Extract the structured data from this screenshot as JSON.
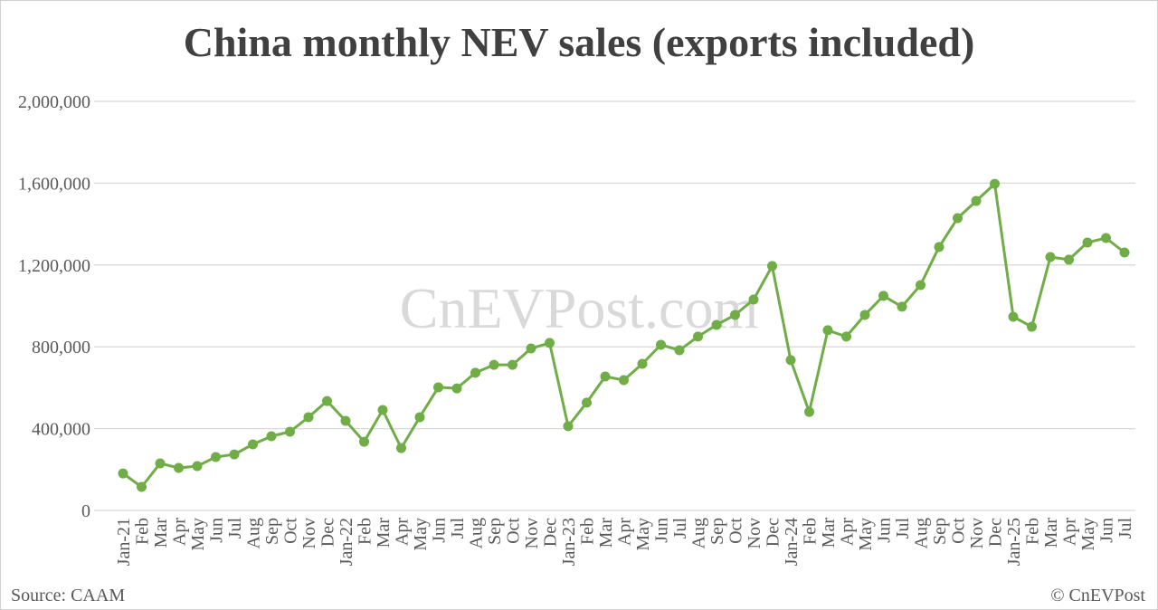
{
  "chart_data": {
    "type": "line",
    "title": "China monthly NEV sales (exports included)",
    "xlabel": "",
    "ylabel": "",
    "ylim": [
      0,
      2000000
    ],
    "yticks": [
      "0",
      "400,000",
      "800,000",
      "1,200,000",
      "1,600,000",
      "2,000,000"
    ],
    "ytick_values": [
      0,
      400000,
      800000,
      1200000,
      1600000,
      2000000
    ],
    "grid": true,
    "legend": "none",
    "line_color": "#70ad47",
    "categories": [
      "Jan-21",
      "Feb",
      "Mar",
      "Apr",
      "May",
      "Jun",
      "Jul",
      "Aug",
      "Sep",
      "Oct",
      "Nov",
      "Dec",
      "Jan-22",
      "Feb",
      "Mar",
      "Apr",
      "May",
      "Jun",
      "Jul",
      "Aug",
      "Sep",
      "Oct",
      "Nov",
      "Dec",
      "Jan-23",
      "Feb",
      "Mar",
      "Apr",
      "May",
      "Jun",
      "Jul",
      "Aug",
      "Sep",
      "Oct",
      "Nov",
      "Dec",
      "Jan-24",
      "Feb",
      "Mar",
      "Apr",
      "May",
      "Jun",
      "Jul",
      "Aug",
      "Sep",
      "Oct",
      "Nov",
      "Dec",
      "Jan-25",
      "Feb",
      "Mar",
      "Apr",
      "May",
      "Jun",
      "Jul"
    ],
    "values": [
      181000,
      115000,
      230000,
      208000,
      217000,
      261000,
      274000,
      323000,
      363000,
      385000,
      456000,
      535000,
      438000,
      336000,
      491000,
      305000,
      456000,
      602000,
      597000,
      673000,
      712000,
      712000,
      792000,
      819000,
      412000,
      527000,
      655000,
      637000,
      717000,
      810000,
      783000,
      850000,
      907000,
      956000,
      1031000,
      1195000,
      735000,
      482000,
      881000,
      850000,
      956000,
      1049000,
      996000,
      1102000,
      1288000,
      1429000,
      1513000,
      1597000,
      947000,
      898000,
      1239000,
      1226000,
      1310000,
      1332000,
      1261000
    ]
  },
  "watermark": "CnEVPost.com",
  "source": "Source: CAAM",
  "copyright": "© CnEVPost"
}
